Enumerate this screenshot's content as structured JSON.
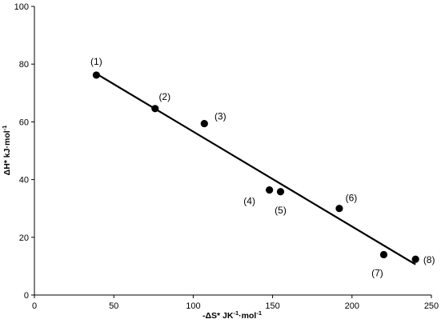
{
  "chart_data": {
    "type": "scatter",
    "title": "",
    "xlabel": "-ΔS* JK-1·mol-1",
    "ylabel": "ΔH* kJ·mol-1",
    "xlim": [
      0,
      250
    ],
    "ylim": [
      0,
      100
    ],
    "xticks": [
      0,
      50,
      100,
      150,
      200,
      250
    ],
    "yticks": [
      0,
      20,
      40,
      60,
      80,
      100
    ],
    "grid": false,
    "legend": "none",
    "points": [
      {
        "label": "(1)",
        "x": 39,
        "y": 76.2
      },
      {
        "label": "(2)",
        "x": 76,
        "y": 64.6
      },
      {
        "label": "(3)",
        "x": 107,
        "y": 59.4
      },
      {
        "label": "(4)",
        "x": 148,
        "y": 36.4
      },
      {
        "label": "(5)",
        "x": 155,
        "y": 35.8
      },
      {
        "label": "(6)",
        "x": 192,
        "y": 30.0
      },
      {
        "label": "(7)",
        "x": 220,
        "y": 14.0
      },
      {
        "label": "(8)",
        "x": 240,
        "y": 12.4
      }
    ],
    "fit_line": {
      "x1": 38,
      "y1": 77.0,
      "x2": 240,
      "y2": 10.6
    },
    "colors": {
      "marker": "#000000",
      "line": "#000000"
    }
  }
}
